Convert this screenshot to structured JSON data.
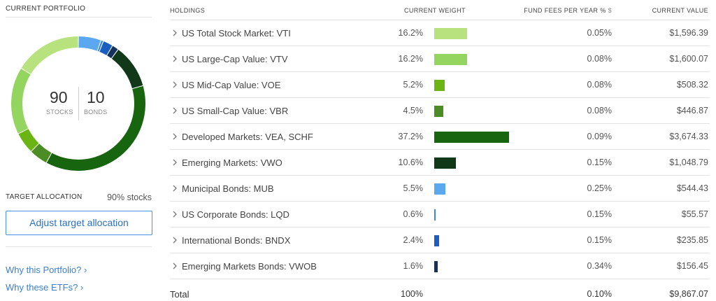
{
  "left": {
    "current_portfolio_title": "CURRENT PORTFOLIO",
    "stocks_value": "90",
    "stocks_label": "STOCKS",
    "bonds_value": "10",
    "bonds_label": "BONDS",
    "target_allocation_label": "TARGET ALLOCATION",
    "target_allocation_value": "90% stocks",
    "adjust_button_label": "Adjust target allocation",
    "link_why_portfolio": "Why this Portfolio? ›",
    "link_why_etfs": "Why these ETFs? ›"
  },
  "table": {
    "headers": {
      "holdings": "HOLDINGS",
      "weight": "CURRENT WEIGHT",
      "fees": "FUND FEES PER YEAR %",
      "fees_icon": "$",
      "value": "CURRENT VALUE"
    },
    "rows": [
      {
        "name": "US Total Stock Market: VTI",
        "weight": "16.2%",
        "weight_value": 16.2,
        "color": "#b7e27d",
        "fee": "0.05%",
        "value": "$1,596.39"
      },
      {
        "name": "US Large-Cap Value: VTV",
        "weight": "16.2%",
        "weight_value": 16.2,
        "color": "#93d55f",
        "fee": "0.08%",
        "value": "$1,600.07"
      },
      {
        "name": "US Mid-Cap Value: VOE",
        "weight": "5.2%",
        "weight_value": 5.2,
        "color": "#6ab513",
        "fee": "0.08%",
        "value": "$508.32"
      },
      {
        "name": "US Small-Cap Value: VBR",
        "weight": "4.5%",
        "weight_value": 4.5,
        "color": "#4c8c24",
        "fee": "0.08%",
        "value": "$446.87"
      },
      {
        "name": "Developed Markets: VEA, SCHF",
        "weight": "37.2%",
        "weight_value": 37.2,
        "color": "#17660f",
        "fee": "0.09%",
        "value": "$3,674.33"
      },
      {
        "name": "Emerging Markets: VWO",
        "weight": "10.6%",
        "weight_value": 10.6,
        "color": "#12381a",
        "fee": "0.15%",
        "value": "$1,048.79"
      },
      {
        "name": "Municipal Bonds: MUB",
        "weight": "5.5%",
        "weight_value": 5.5,
        "color": "#5ba8f0",
        "fee": "0.25%",
        "value": "$544.43"
      },
      {
        "name": "US Corporate Bonds: LQD",
        "weight": "0.6%",
        "weight_value": 0.6,
        "color": "#3b88e0",
        "fee": "0.15%",
        "value": "$55.57"
      },
      {
        "name": "International Bonds: BNDX",
        "weight": "2.4%",
        "weight_value": 2.4,
        "color": "#1b5ec0",
        "fee": "0.15%",
        "value": "$235.85"
      },
      {
        "name": "Emerging Markets Bonds: VWOB",
        "weight": "1.6%",
        "weight_value": 1.6,
        "color": "#15315c",
        "fee": "0.34%",
        "value": "$156.45"
      }
    ],
    "total": {
      "label": "Total",
      "weight": "100%",
      "fee": "0.10%",
      "value": "$9,867.07"
    }
  }
}
